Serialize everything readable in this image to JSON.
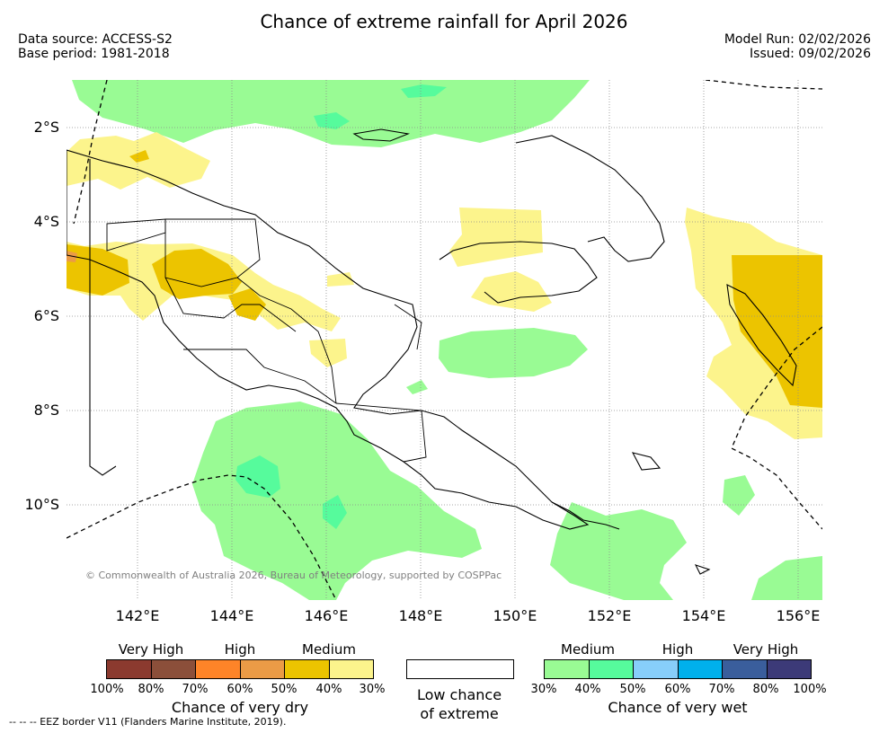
{
  "title": "Chance of extreme rainfall for April 2026",
  "meta": {
    "data_source": "Data source: ACCESS-S2",
    "base_period": "Base period: 1981-2018",
    "model_run": "Model Run: 02/02/2026",
    "issued": "Issued: 09/02/2026"
  },
  "map": {
    "lat_labels": [
      "2°S",
      "4°S",
      "6°S",
      "8°S",
      "10°S"
    ],
    "lon_labels": [
      "142°E",
      "144°E",
      "146°E",
      "148°E",
      "150°E",
      "152°E",
      "154°E",
      "156°E"
    ],
    "copyright": "© Commonwealth of Australia 2026, Bureau of Meteorology, supported by COSPPac",
    "colors": {
      "dry_30": "#fcf48c",
      "dry_40": "#ecc400",
      "dry_50": "#eb9b46",
      "wet_30": "#99fb94",
      "wet_40": "#56fb9c",
      "coast": "#000000",
      "grid": "#8c8c8c"
    }
  },
  "legend": {
    "dry": {
      "levels": [
        "Very High",
        "High",
        "Medium"
      ],
      "colors": [
        "#8b3a2f",
        "#8b4f3a",
        "#fe8428",
        "#eb9b46",
        "#ecc400",
        "#fcf48c"
      ],
      "ticks": [
        "100%",
        "80%",
        "70%",
        "60%",
        "50%",
        "40%",
        "30%"
      ],
      "caption": "Chance of very dry"
    },
    "neutral": {
      "caption_line1": "Low chance",
      "caption_line2": "of extreme"
    },
    "wet": {
      "levels": [
        "Medium",
        "High",
        "Very High"
      ],
      "colors": [
        "#99fb94",
        "#56fb9c",
        "#87cefa",
        "#00b0ec",
        "#3a5e9c",
        "#3c3a78"
      ],
      "ticks": [
        "30%",
        "40%",
        "50%",
        "60%",
        "70%",
        "80%",
        "100%"
      ],
      "caption": "Chance of very wet"
    }
  },
  "eez_note": "--  --  -- EEZ border V11 (Flanders Marine Institute, 2019)."
}
